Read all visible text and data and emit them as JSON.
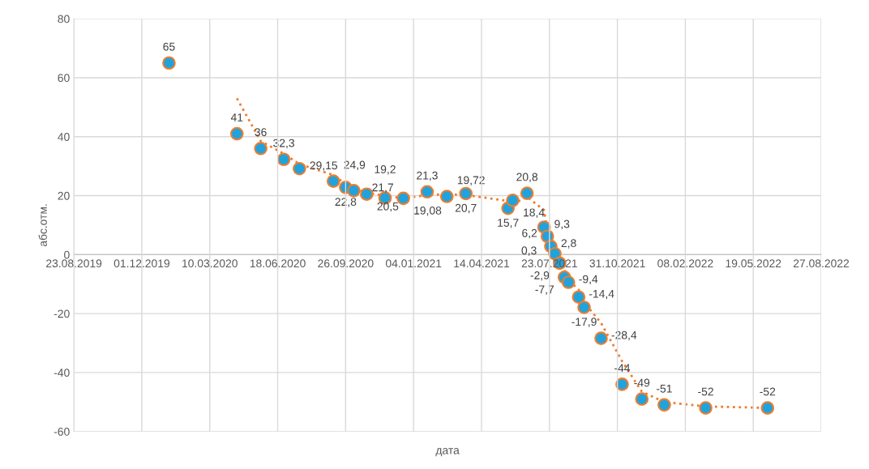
{
  "chart_data": {
    "type": "scatter",
    "xlabel": "дата",
    "ylabel": "абс.отм.",
    "xlim": [
      "2019-08-23",
      "2022-08-27"
    ],
    "xticks": [
      {
        "value": "2019-08-23",
        "label": "23.08.2019"
      },
      {
        "value": "2019-12-01",
        "label": "01.12.2019"
      },
      {
        "value": "2020-03-10",
        "label": "10.03.2020"
      },
      {
        "value": "2020-06-18",
        "label": "18.06.2020"
      },
      {
        "value": "2020-09-26",
        "label": "26.09.2020"
      },
      {
        "value": "2021-01-04",
        "label": "04.01.2021"
      },
      {
        "value": "2021-04-14",
        "label": "14.04.2021"
      },
      {
        "value": "2021-07-23",
        "label": "23.07.2021"
      },
      {
        "value": "2021-10-31",
        "label": "31.10.2021"
      },
      {
        "value": "2022-02-08",
        "label": "08.02.2022"
      },
      {
        "value": "2022-05-19",
        "label": "19.05.2022"
      },
      {
        "value": "2022-08-27",
        "label": "27.08.2022"
      }
    ],
    "ylim": [
      -60,
      80
    ],
    "yticks": [
      -60,
      -40,
      -20,
      0,
      20,
      40,
      60,
      80
    ],
    "grid": true,
    "series": [
      {
        "color": "#1fa3dc",
        "marker": "circle",
        "x": [
          "2020-01-10",
          "2020-04-19",
          "2020-05-24",
          "2020-06-27",
          "2020-07-20",
          "2020-09-08",
          "2020-09-26",
          "2020-10-08",
          "2020-10-27",
          "2020-11-23",
          "2020-12-20",
          "2021-01-24",
          "2021-02-22",
          "2021-03-22",
          "2021-05-23",
          "2021-05-30",
          "2021-06-20",
          "2021-07-15",
          "2021-07-20",
          "2021-07-25",
          "2021-07-31",
          "2021-08-07",
          "2021-08-14",
          "2021-08-20",
          "2021-09-04",
          "2021-09-12",
          "2021-10-07",
          "2021-11-07",
          "2021-12-06",
          "2022-01-08",
          "2022-03-10",
          "2022-06-09"
        ],
        "values": [
          65,
          41,
          36,
          32.3,
          29.15,
          24.9,
          22.8,
          21.7,
          20.5,
          19.2,
          19.08,
          21.3,
          19.72,
          20.7,
          15.7,
          18.4,
          20.8,
          9.3,
          6.2,
          2.8,
          0.3,
          -2.9,
          -7.7,
          -9.4,
          -14.4,
          -17.9,
          -28.4,
          -44,
          -49,
          -51,
          -52,
          -52
        ],
        "value_labels": [
          "65",
          "41",
          "36",
          "32,3",
          "29,15",
          "24,9",
          "22,8",
          "21,7",
          "20,5",
          "19,2",
          "19,08",
          "21,3",
          "19,72",
          "20,7",
          "15,7",
          "18,4",
          "20,8",
          "9,3",
          "6,2",
          "2,8",
          "0,3",
          "-2,9",
          "-7,7",
          "-9,4",
          "-14,4",
          "-17,9",
          "-28,4",
          "-44",
          "-49",
          "-51",
          "-52",
          "-52"
        ]
      },
      {
        "type": "line",
        "color": "#ed7d31",
        "line_style": "dotted",
        "x": [
          "2020-04-19",
          "2020-05-24",
          "2020-06-27",
          "2020-07-20",
          "2020-09-08",
          "2020-09-26",
          "2020-10-08",
          "2020-10-27",
          "2020-11-23",
          "2020-12-20",
          "2021-01-24",
          "2021-02-22",
          "2021-03-22",
          "2021-05-23",
          "2021-05-30",
          "2021-06-20",
          "2021-07-15",
          "2021-07-20",
          "2021-07-25",
          "2021-07-31",
          "2021-08-07",
          "2021-08-14",
          "2021-08-20",
          "2021-09-04",
          "2021-09-12",
          "2021-10-07",
          "2021-11-07",
          "2021-12-06",
          "2022-01-08",
          "2022-03-10",
          "2022-06-09"
        ],
        "values": [
          53,
          38.5,
          34.2,
          30.7,
          27,
          23.9,
          22.3,
          21.1,
          19.9,
          19.1,
          20.2,
          20.5,
          20.2,
          18.2,
          17.1,
          19.6,
          15.1,
          7.8,
          4.5,
          1.6,
          -1.3,
          -5.3,
          -8.6,
          -11.9,
          -16.2,
          -23.2,
          -36.2,
          -46.5,
          -50,
          -51.5,
          -52
        ]
      }
    ]
  }
}
